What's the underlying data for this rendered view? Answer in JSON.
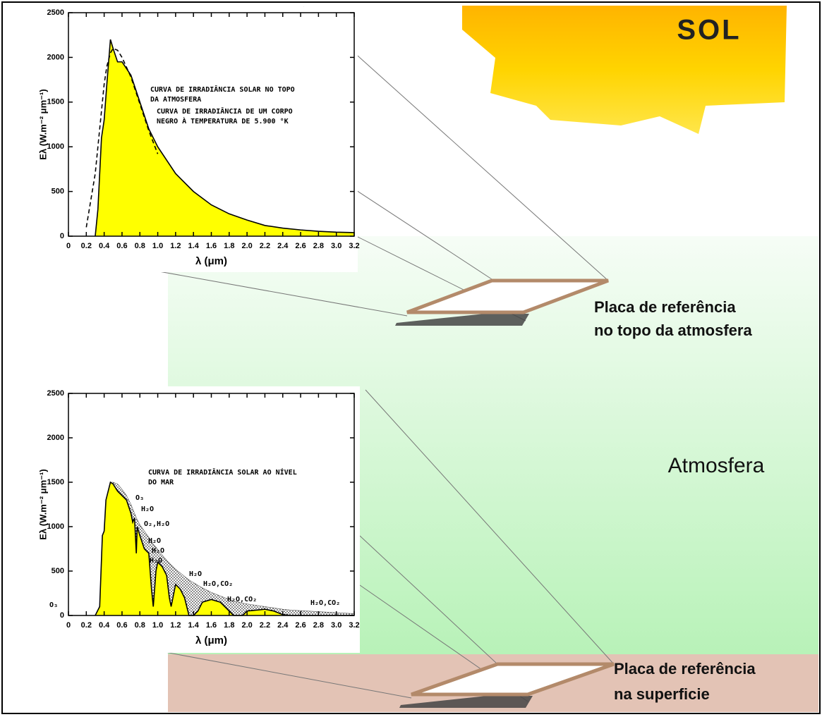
{
  "chart_data": [
    {
      "type": "area",
      "ylabel": "Eλ (W.m⁻² μm⁻¹)",
      "xlabel": "λ (μm)",
      "x": [
        0.2,
        0.25,
        0.3,
        0.33,
        0.37,
        0.4,
        0.43,
        0.47,
        0.5,
        0.55,
        0.6,
        0.7,
        0.8,
        0.9,
        1.0,
        1.2,
        1.4,
        1.6,
        1.8,
        2.0,
        2.2,
        2.4,
        2.6,
        2.8,
        3.0,
        3.2
      ],
      "series": [
        {
          "color": "#ffff00",
          "values": [
            null,
            null,
            0,
            300,
            1100,
            1300,
            1700,
            2200,
            2100,
            1950,
            1950,
            1800,
            1500,
            1200,
            1000,
            700,
            500,
            350,
            250,
            180,
            120,
            90,
            70,
            55,
            45,
            40
          ]
        },
        {
          "color": "#000000",
          "dashed": true,
          "values": [
            100,
            400,
            700,
            1000,
            1400,
            1700,
            1900,
            2050,
            2100,
            2080,
            2000,
            1780,
            1480,
            1180,
            920,
            null,
            null,
            null,
            null,
            null,
            null,
            null,
            null,
            null,
            null,
            null
          ]
        }
      ],
      "annotations": [
        "CURVA DE IRRADIÂNCIA SOLAR NO TOPO",
        "DA ATMOSFERA",
        "CURVA DE IRRADIÂNCIA DE UM CORPO",
        "NEGRO À TEMPERATURA DE 5.900 °K"
      ],
      "xlim": [
        0,
        3.2
      ],
      "ylim": [
        0,
        2500
      ],
      "xticks": [
        0,
        0.2,
        0.4,
        0.6,
        0.8,
        {
          "value": 1,
          "label": "1.0"
        },
        1.2,
        1.4,
        1.6,
        1.8,
        {
          "value": 2,
          "label": "2.0"
        },
        2.2,
        2.4,
        2.6,
        2.8,
        {
          "value": 3,
          "label": "3.0"
        },
        3.2
      ],
      "yticks": [
        0,
        500,
        1000,
        1500,
        2000,
        2500
      ]
    },
    {
      "type": "area",
      "ylabel": "Eλ (W.m⁻² μm⁻¹)",
      "xlabel": "λ (μm)",
      "x": [
        0.3,
        0.35,
        0.38,
        0.4,
        0.42,
        0.47,
        0.5,
        0.55,
        0.6,
        0.65,
        0.7,
        0.72,
        0.74,
        0.76,
        0.77,
        0.8,
        0.85,
        0.9,
        0.93,
        0.95,
        0.98,
        1.0,
        1.05,
        1.1,
        1.13,
        1.15,
        1.2,
        1.25,
        1.3,
        1.35,
        1.4,
        1.45,
        1.5,
        1.6,
        1.7,
        1.8,
        1.85,
        1.95,
        2.0,
        2.1,
        2.2,
        2.3,
        2.4,
        2.5,
        3.2
      ],
      "series": [
        {
          "color": "#dddddd",
          "dotted": true,
          "values": [
            0,
            100,
            900,
            950,
            1300,
            1500,
            1500,
            1480,
            1420,
            1350,
            1250,
            1200,
            1150,
            1100,
            1080,
            1020,
            950,
            880,
            840,
            800,
            770,
            740,
            680,
            620,
            590,
            570,
            520,
            480,
            440,
            400,
            370,
            340,
            310,
            260,
            220,
            180,
            160,
            140,
            130,
            115,
            100,
            85,
            70,
            60,
            20
          ]
        },
        {
          "color": "#ffff00",
          "values": [
            0,
            100,
            900,
            950,
            1300,
            1500,
            1480,
            1400,
            1350,
            1300,
            1150,
            1050,
            1100,
            700,
            1000,
            900,
            750,
            700,
            300,
            100,
            500,
            600,
            550,
            450,
            200,
            100,
            350,
            300,
            200,
            0,
            0,
            50,
            150,
            180,
            150,
            50,
            0,
            0,
            50,
            60,
            70,
            50,
            10,
            0,
            0
          ]
        }
      ],
      "annotations": [
        "CURVA DE IRRADIÂNCIA SOLAR AO NÍVEL",
        "DO MAR",
        "O₃",
        "H₂O",
        "O₂,H₂O",
        "H₂O",
        "H₂O",
        "H₂O",
        "H₂O",
        "H₂O,CO₂",
        "H₂O,CO₂",
        "H₂O,CO₂",
        "O₃"
      ],
      "xlim": [
        0,
        3.2
      ],
      "ylim": [
        0,
        2500
      ],
      "xticks": [
        0,
        0.2,
        0.4,
        0.6,
        0.8,
        {
          "value": 1,
          "label": "1.0"
        },
        1.2,
        1.4,
        1.6,
        1.8,
        {
          "value": 2,
          "label": "2.0"
        },
        2.2,
        2.4,
        2.6,
        2.8,
        {
          "value": 3,
          "label": "3.0"
        },
        3.2
      ],
      "yticks": [
        0,
        500,
        1000,
        1500,
        2000,
        2500
      ]
    }
  ],
  "labels": {
    "sun": "SOL",
    "atmosphere": "Atmosfera",
    "plate_top": [
      "Placa de referência",
      "no topo da atmosfera"
    ],
    "plate_surface": [
      "Placa de referência",
      "na superficie"
    ]
  }
}
